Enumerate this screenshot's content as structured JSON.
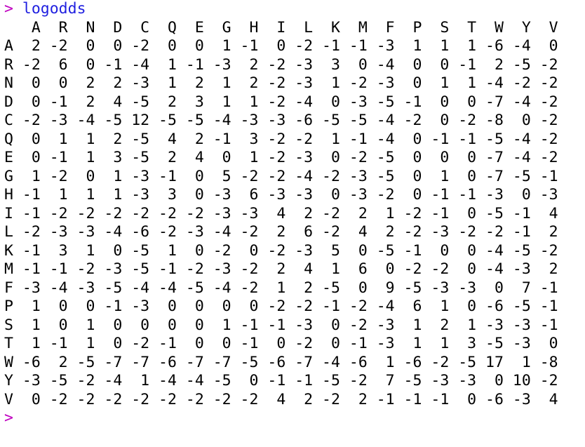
{
  "console": {
    "prompt_symbol": ">",
    "command": "logodds",
    "output_header": "   A  R  N  D  C  Q  E  G  H  I  L  K  M  F  P  S  T  W  Y  V",
    "output_rows": [
      "A  2 -2  0  0 -2  0  0  1 -1  0 -2 -1 -1 -3  1  1  1 -6 -4  0",
      "R -2  6  0 -1 -4  1 -1 -3  2 -2 -3  3  0 -4  0  0 -1  2 -5 -2",
      "N  0  0  2  2 -3  1  2  1  2 -2 -3  1 -2 -3  0  1  1 -4 -2 -2",
      "D  0 -1  2  4 -5  2  3  1  1 -2 -4  0 -3 -5 -1  0  0 -7 -4 -2",
      "C -2 -3 -4 -5 12 -5 -5 -4 -3 -3 -6 -5 -5 -4 -2  0 -2 -8  0 -2",
      "Q  0  1  1  2 -5  4  2 -1  3 -2 -2  1 -1 -4  0 -1 -1 -5 -4 -2",
      "E  0 -1  1  3 -5  2  4  0  1 -2 -3  0 -2 -5  0  0  0 -7 -4 -2",
      "G  1 -2  0  1 -3 -1  0  5 -2 -2 -4 -2 -3 -5  0  1  0 -7 -5 -1",
      "H -1  1  1  1 -3  3  0 -3  6 -3 -3  0 -3 -2  0 -1 -1 -3  0 -3",
      "I -1 -2 -2 -2 -2 -2 -2 -3 -3  4  2 -2  2  1 -2 -1  0 -5 -1  4",
      "L -2 -3 -3 -4 -6 -2 -3 -4 -2  2  6 -2  4  2 -2 -3 -2 -2 -1  2",
      "K -1  3  1  0 -5  1  0 -2  0 -2 -3  5  0 -5 -1  0  0 -4 -5 -2",
      "M -1 -1 -2 -3 -5 -1 -2 -3 -2  2  4  1  6  0 -2 -2  0 -4 -3  2",
      "F -3 -4 -3 -5 -4 -4 -5 -4 -2  1  2 -5  0  9 -5 -3 -3  0  7 -1",
      "P  1  0  0 -1 -3  0  0  0  0 -2 -2 -1 -2 -4  6  1  0 -6 -5 -1",
      "S  1  0  1  0  0  0  0  1 -1 -1 -3  0 -2 -3  1  2  1 -3 -3 -1",
      "T  1 -1  1  0 -2 -1  0  0 -1  0 -2  0 -1 -3  1  1  3 -5 -3  0",
      "W -6  2 -5 -7 -7 -6 -7 -7 -5 -6 -7 -4 -6  1 -6 -2 -5 17  1 -8",
      "Y -3 -5 -2 -4  1 -4 -4 -5  0 -1 -1 -5 -2  7 -5 -3 -3  0 10 -2",
      "V  0 -2 -2 -2 -2 -2 -2 -2 -2  4  2 -2  2 -1 -1 -1  0 -6 -3  4"
    ]
  },
  "colors": {
    "prompt": "#c000c0",
    "command": "#2020e0",
    "output": "#000000",
    "background": "#ffffff"
  }
}
